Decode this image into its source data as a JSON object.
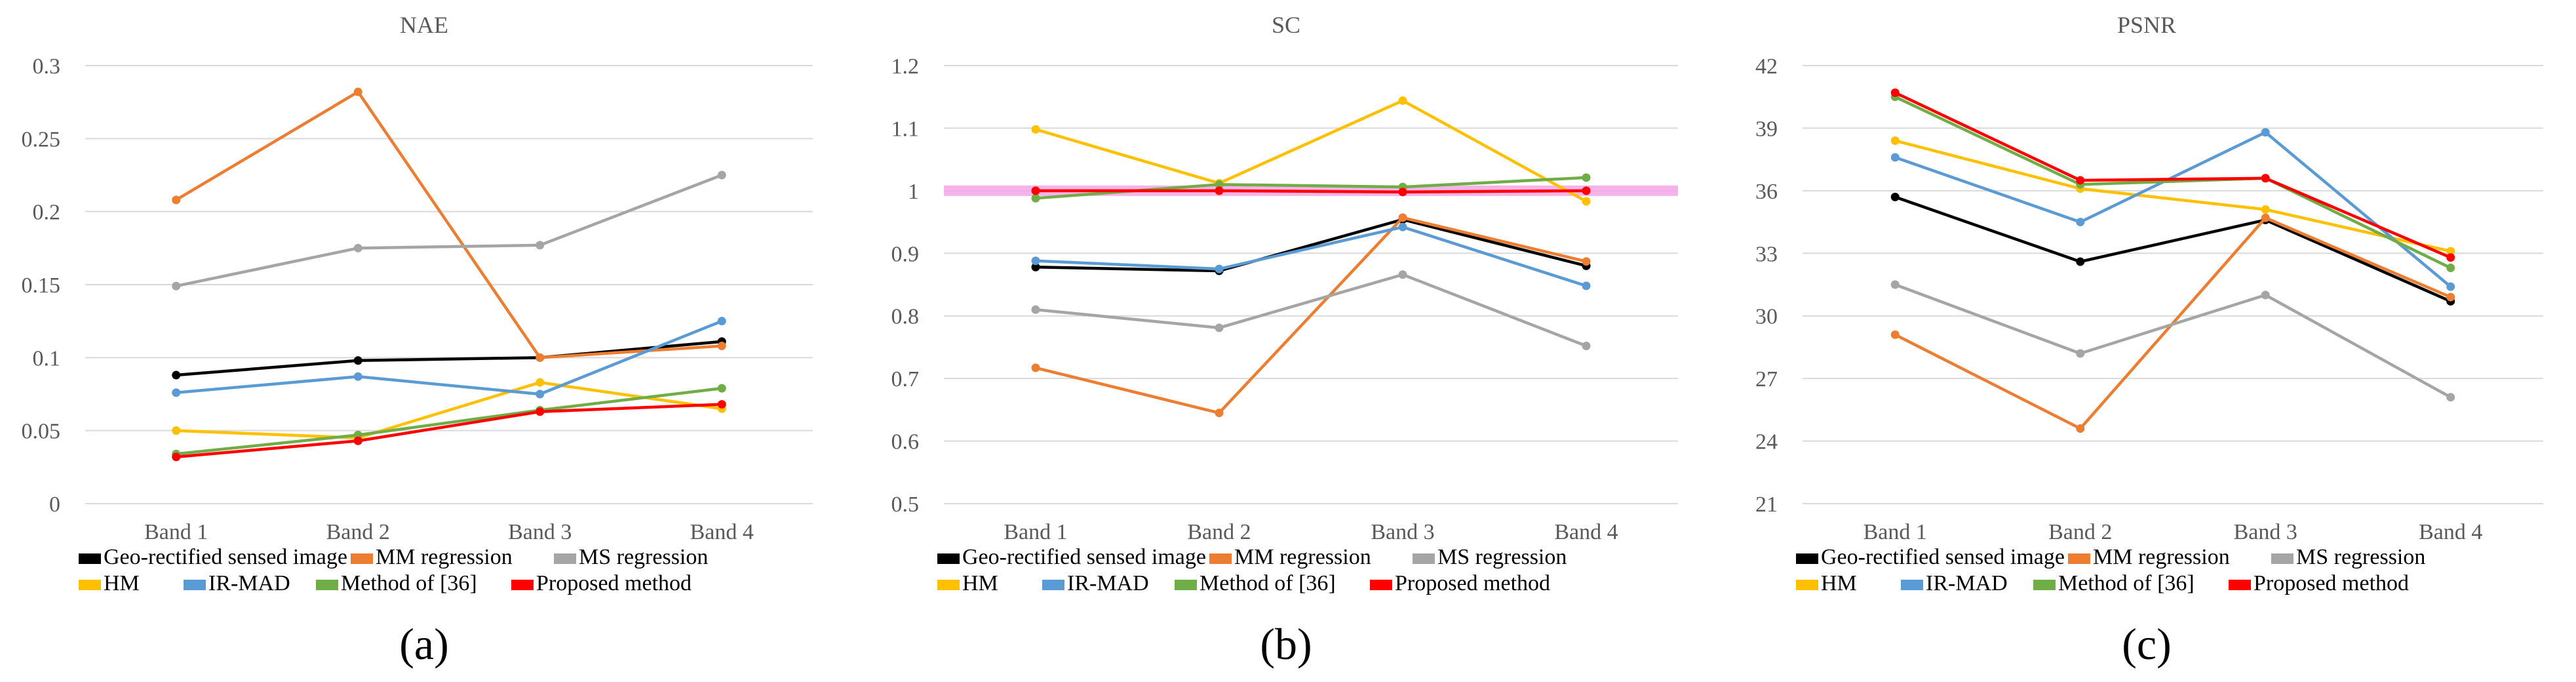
{
  "chart_data": [
    {
      "type": "line",
      "panel_label": "(a)",
      "title": "NAE",
      "categories": [
        "Band 1",
        "Band 2",
        "Band 3",
        "Band 4"
      ],
      "ylim": [
        0,
        0.3
      ],
      "yticks": [
        "0",
        "0.05",
        "0.1",
        "0.15",
        "0.2",
        "0.25",
        "0.3"
      ],
      "ytick_values": [
        0,
        0.05,
        0.1,
        0.15,
        0.2,
        0.25,
        0.3
      ],
      "series": [
        {
          "name": "Geo-rectified sensed image",
          "color": "#000000",
          "values": [
            0.088,
            0.098,
            0.1,
            0.111
          ]
        },
        {
          "name": "MM regression",
          "color": "#ED7D31",
          "values": [
            0.208,
            0.282,
            0.1,
            0.108
          ]
        },
        {
          "name": "MS regression",
          "color": "#A5A5A5",
          "values": [
            0.149,
            0.175,
            0.177,
            0.225
          ]
        },
        {
          "name": "HM",
          "color": "#FFC000",
          "values": [
            0.05,
            0.045,
            0.083,
            0.065
          ]
        },
        {
          "name": "IR-MAD",
          "color": "#5B9BD5",
          "values": [
            0.076,
            0.087,
            0.075,
            0.125
          ]
        },
        {
          "name": "Method of [36]",
          "color": "#70AD47",
          "values": [
            0.034,
            0.047,
            0.064,
            0.079
          ]
        },
        {
          "name": "Proposed method",
          "color": "#FF0000",
          "values": [
            0.032,
            0.043,
            0.063,
            0.068
          ]
        }
      ]
    },
    {
      "type": "line",
      "panel_label": "(b)",
      "title": "SC",
      "categories": [
        "Band 1",
        "Band 2",
        "Band 3",
        "Band 4"
      ],
      "ylim": [
        0.5,
        1.2
      ],
      "yticks": [
        "0.5",
        "0.6",
        "0.7",
        "0.8",
        "0.9",
        "1",
        "1.1",
        "1.2"
      ],
      "ytick_values": [
        0.5,
        0.6,
        0.7,
        0.8,
        0.9,
        1.0,
        1.1,
        1.2
      ],
      "highlight_value": 1.0,
      "highlight_color": "#F4A6E6",
      "series": [
        {
          "name": "Geo-rectified sensed image",
          "color": "#000000",
          "values": [
            0.878,
            0.872,
            0.954,
            0.88
          ]
        },
        {
          "name": "MM regression",
          "color": "#ED7D31",
          "values": [
            0.717,
            0.645,
            0.957,
            0.887
          ]
        },
        {
          "name": "MS regression",
          "color": "#A5A5A5",
          "values": [
            0.81,
            0.781,
            0.866,
            0.752
          ]
        },
        {
          "name": "HM",
          "color": "#FFC000",
          "values": [
            1.098,
            1.012,
            1.144,
            0.983
          ]
        },
        {
          "name": "IR-MAD",
          "color": "#5B9BD5",
          "values": [
            0.888,
            0.875,
            0.942,
            0.848
          ]
        },
        {
          "name": "Method of [36]",
          "color": "#70AD47",
          "values": [
            0.988,
            1.01,
            1.006,
            1.021
          ]
        },
        {
          "name": "Proposed method",
          "color": "#FF0000",
          "values": [
            1.0,
            1.0,
            0.998,
            1.0
          ]
        }
      ]
    },
    {
      "type": "line",
      "panel_label": "(c)",
      "title": "PSNR",
      "categories": [
        "Band 1",
        "Band 2",
        "Band 3",
        "Band 4"
      ],
      "ylim": [
        21,
        42
      ],
      "yticks": [
        "21",
        "24",
        "27",
        "30",
        "33",
        "36",
        "39",
        "42"
      ],
      "ytick_values": [
        21,
        24,
        27,
        30,
        33,
        36,
        39,
        42
      ],
      "series": [
        {
          "name": "Geo-rectified sensed image",
          "color": "#000000",
          "values": [
            35.7,
            32.6,
            34.6,
            30.7
          ]
        },
        {
          "name": "MM regression",
          "color": "#ED7D31",
          "values": [
            29.1,
            24.6,
            34.7,
            30.9
          ]
        },
        {
          "name": "MS regression",
          "color": "#A5A5A5",
          "values": [
            31.5,
            28.2,
            31.0,
            26.1
          ]
        },
        {
          "name": "HM",
          "color": "#FFC000",
          "values": [
            38.4,
            36.1,
            35.1,
            33.1
          ]
        },
        {
          "name": "IR-MAD",
          "color": "#5B9BD5",
          "values": [
            37.6,
            34.5,
            38.8,
            31.4
          ]
        },
        {
          "name": "Method of [36]",
          "color": "#70AD47",
          "values": [
            40.5,
            36.3,
            36.6,
            32.3
          ]
        },
        {
          "name": "Proposed method",
          "color": "#FF0000",
          "values": [
            40.7,
            36.5,
            36.6,
            32.8
          ]
        }
      ]
    }
  ]
}
